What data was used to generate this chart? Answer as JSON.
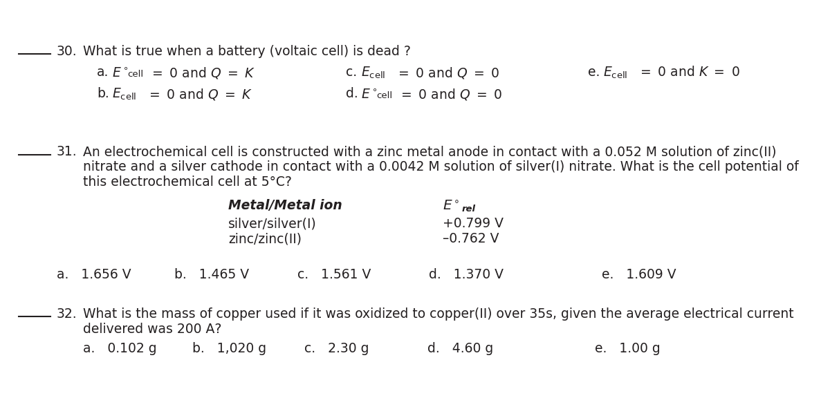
{
  "bg_color": "#ffffff",
  "text_color": "#231f20",
  "figsize": [
    12.0,
    5.76
  ],
  "dpi": 100,
  "q30_number": "30.",
  "q30_text": "What is true when a battery (voltaic cell) is dead ?",
  "q31_number": "31.",
  "q31_text1": "An electrochemical cell is constructed with a zinc metal anode in contact with a 0.052 M solution of zinc(II)",
  "q31_text2": "nitrate and a silver cathode in contact with a 0.0042 M solution of silver(I) nitrate. What is the cell potential of",
  "q31_text3": "this electrochemical cell at 5°C?",
  "q31_col1_header": "Metal/Metal ion",
  "q31_row1_col1": "silver/silver(I)",
  "q31_row1_col2": "+0.799 V",
  "q31_row2_col1": "zinc/zinc(II)",
  "q31_row2_col2": "–0.762 V",
  "q31_ans": [
    "a.   1.656 V",
    "b.   1.465 V",
    "c.   1.561 V",
    "d.   1.370 V",
    "e.   1.609 V"
  ],
  "q32_number": "32.",
  "q32_text1": "What is the mass of copper used if it was oxidized to copper(II) over 35s, given the average electrical current",
  "q32_text2": "delivered was 200 A?",
  "q32_ans": [
    "a.   0.102 g",
    "b.   1,020 g",
    "c.   2.30 g",
    "d.   4.60 g",
    "e.   1.00 g"
  ]
}
